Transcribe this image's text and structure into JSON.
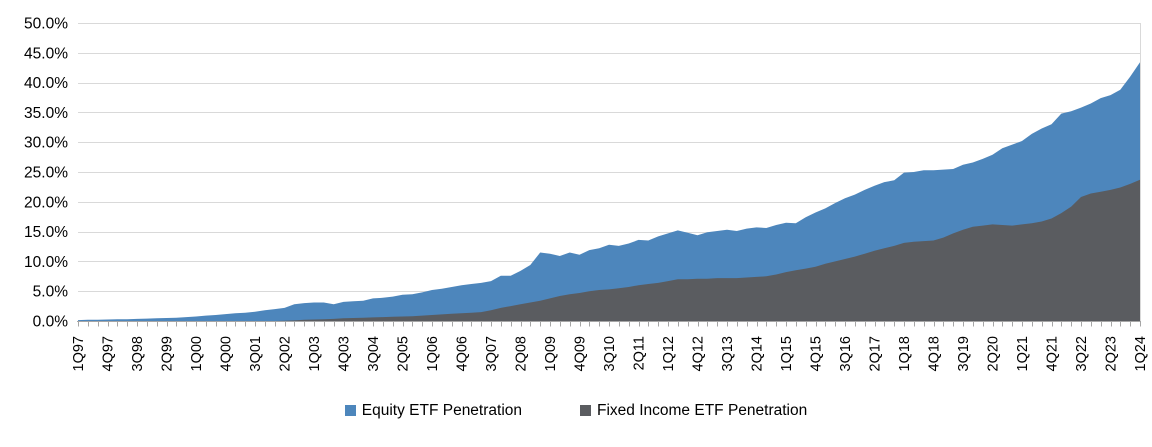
{
  "chart_data": {
    "type": "area",
    "title": "",
    "legend_position": "bottom",
    "grid": "horizontal",
    "overlap_mode": "overlaid (second series drawn in front of first)",
    "y_axis": {
      "min": 0,
      "max": 50,
      "step": 5,
      "tick_labels": [
        "50.0%",
        "45.0%",
        "40.0%",
        "35.0%",
        "30.0%",
        "25.0%",
        "20.0%",
        "15.0%",
        "10.0%",
        "5.0%",
        "0.0%"
      ]
    },
    "x_axis": {
      "first_quarter": "1Q97",
      "last_quarter": "1Q24",
      "points": 109,
      "tick_every_n_points": 1,
      "label_every_n_points": 3,
      "tick_labels": [
        "1Q97",
        "4Q97",
        "3Q98",
        "2Q99",
        "1Q00",
        "4Q00",
        "3Q01",
        "2Q02",
        "1Q03",
        "4Q03",
        "3Q04",
        "2Q05",
        "1Q06",
        "4Q06",
        "3Q07",
        "2Q08",
        "1Q09",
        "4Q09",
        "3Q10",
        "2Q11",
        "1Q12",
        "4Q12",
        "3Q13",
        "2Q14",
        "1Q15",
        "4Q15",
        "3Q16",
        "2Q17",
        "1Q18",
        "4Q18",
        "3Q19",
        "2Q20",
        "1Q21",
        "4Q21",
        "3Q22",
        "2Q23",
        "1Q24"
      ]
    },
    "series": [
      {
        "name": "Equity ETF Penetration",
        "color": "#4D86BC",
        "values": [
          0.15,
          0.2,
          0.2,
          0.25,
          0.3,
          0.3,
          0.35,
          0.4,
          0.45,
          0.5,
          0.55,
          0.65,
          0.75,
          0.9,
          1.0,
          1.15,
          1.3,
          1.4,
          1.55,
          1.8,
          2.0,
          2.2,
          2.8,
          3.0,
          3.1,
          3.1,
          2.8,
          3.2,
          3.3,
          3.4,
          3.8,
          3.9,
          4.1,
          4.4,
          4.5,
          4.8,
          5.2,
          5.4,
          5.7,
          6.0,
          6.2,
          6.4,
          6.7,
          7.6,
          7.6,
          8.4,
          9.4,
          11.5,
          11.3,
          10.9,
          11.5,
          11.1,
          11.9,
          12.2,
          12.8,
          12.6,
          13.0,
          13.6,
          13.5,
          14.2,
          14.7,
          15.2,
          14.8,
          14.4,
          14.9,
          15.1,
          15.3,
          15.1,
          15.5,
          15.7,
          15.6,
          16.1,
          16.5,
          16.4,
          17.4,
          18.2,
          18.9,
          19.8,
          20.6,
          21.2,
          22.0,
          22.7,
          23.3,
          23.6,
          24.9,
          25.0,
          25.3,
          25.3,
          25.4,
          25.5,
          26.2,
          26.6,
          27.2,
          27.9,
          29.0,
          29.6,
          30.2,
          31.4,
          32.3,
          33.0,
          34.8,
          35.2,
          35.8,
          36.5,
          37.4,
          37.9,
          38.8,
          41.0,
          43.4
        ]
      },
      {
        "name": "Fixed Income ETF Penetration",
        "color": "#5A5C60",
        "values": [
          0,
          0,
          0,
          0,
          0,
          0,
          0,
          0,
          0,
          0,
          0,
          0,
          0,
          0,
          0,
          0,
          0,
          0,
          0,
          0,
          0,
          0.05,
          0.1,
          0.2,
          0.25,
          0.3,
          0.35,
          0.45,
          0.5,
          0.55,
          0.6,
          0.65,
          0.7,
          0.75,
          0.8,
          0.9,
          1.0,
          1.1,
          1.2,
          1.3,
          1.4,
          1.5,
          1.8,
          2.2,
          2.5,
          2.8,
          3.1,
          3.4,
          3.8,
          4.2,
          4.5,
          4.7,
          5.0,
          5.2,
          5.3,
          5.5,
          5.7,
          6.0,
          6.2,
          6.4,
          6.7,
          7.0,
          7.0,
          7.1,
          7.1,
          7.2,
          7.2,
          7.2,
          7.3,
          7.4,
          7.5,
          7.8,
          8.2,
          8.5,
          8.8,
          9.1,
          9.6,
          10.0,
          10.4,
          10.8,
          11.3,
          11.8,
          12.2,
          12.6,
          13.1,
          13.3,
          13.4,
          13.5,
          14.0,
          14.7,
          15.3,
          15.8,
          16.0,
          16.2,
          16.1,
          16.0,
          16.2,
          16.4,
          16.7,
          17.2,
          18.1,
          19.2,
          20.8,
          21.4,
          21.7,
          22.0,
          22.4,
          23.0,
          23.7
        ]
      }
    ],
    "colors": {
      "gridline": "#D9D9D9",
      "axis_line": "#A6A6A6",
      "plot_right_border": "#D9D9D9",
      "label_text": "#000000"
    }
  }
}
